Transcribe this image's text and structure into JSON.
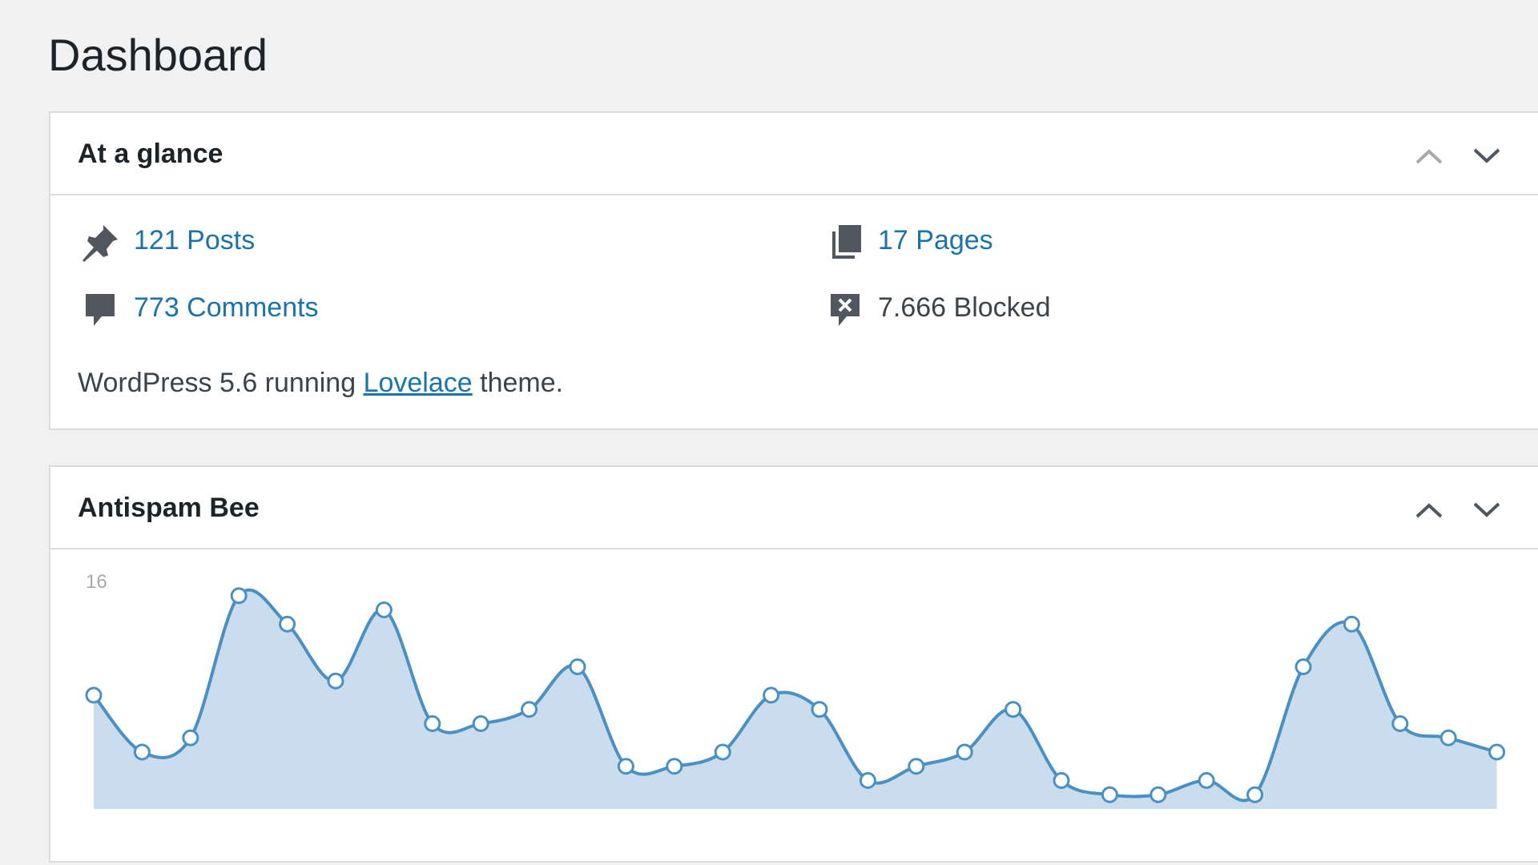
{
  "header": {
    "title": "Dashboard"
  },
  "glance": {
    "title": "At a glance",
    "items": [
      "121 Posts",
      "17 Pages",
      "773 Comments",
      "7.666 Blocked"
    ],
    "footer": [
      "WordPress 5.6 running",
      "Lovelace",
      "theme."
    ]
  },
  "antispam": {
    "title": "Antispam Bee"
  },
  "chart_data": {
    "type": "area",
    "color": "#4a90c2",
    "fill": "#c9ddee",
    "values": [
      8,
      4,
      5,
      15,
      13,
      9,
      14,
      6,
      6,
      7,
      10,
      3,
      3,
      4,
      8,
      7,
      2,
      3,
      4,
      7,
      2,
      1,
      1,
      2,
      1,
      10,
      13,
      6,
      5,
      4
    ],
    "ylim": [
      0,
      16
    ],
    "yticks": [
      16
    ]
  }
}
